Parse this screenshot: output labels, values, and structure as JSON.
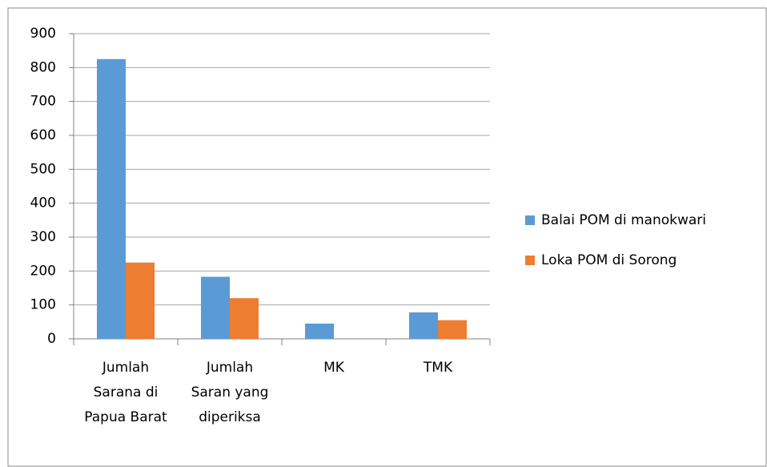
{
  "chart_data": {
    "type": "bar",
    "categories": [
      "Jumlah Sarana di Papua Barat",
      "Jumlah Saran yang diperiksa",
      "MK",
      "TMK"
    ],
    "series": [
      {
        "name": "Balai POM di manokwari",
        "color": "#5b9bd5",
        "values": [
          825,
          183,
          45,
          78
        ]
      },
      {
        "name": "Loka POM di Sorong",
        "color": "#ed7d31",
        "values": [
          225,
          120,
          0,
          55
        ]
      }
    ],
    "ylim": [
      0,
      900
    ],
    "yticks": [
      0,
      100,
      200,
      300,
      400,
      500,
      600,
      700,
      800,
      900
    ],
    "grid": true,
    "legend": "right"
  }
}
